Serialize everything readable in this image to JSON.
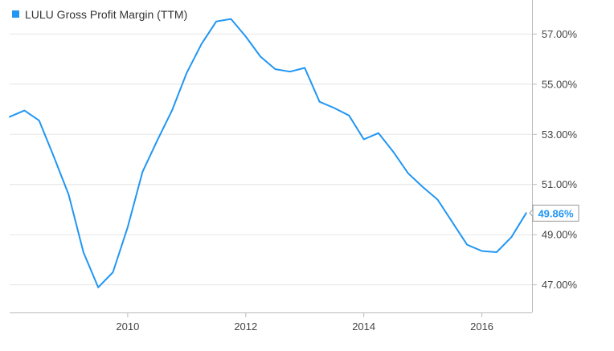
{
  "chart_data": {
    "type": "line",
    "title": "",
    "xlabel": "",
    "ylabel": "",
    "legend": {
      "position": "top-left",
      "items": [
        {
          "label": "LULU Gross Profit Margin (TTM)",
          "color": "#2196F3"
        }
      ]
    },
    "x_ticks": [
      "2010",
      "2012",
      "2014",
      "2016"
    ],
    "y_ticks": [
      "47.00%",
      "49.00%",
      "51.00%",
      "53.00%",
      "55.00%",
      "57.00%"
    ],
    "xlim": [
      2008.0,
      2016.85
    ],
    "ylim": [
      45.9,
      58.1
    ],
    "grid": "horizontal",
    "y_axis_side": "right",
    "series": [
      {
        "name": "LULU Gross Profit Margin (TTM)",
        "color": "#2196F3",
        "x": [
          2008.0,
          2008.25,
          2008.5,
          2008.75,
          2009.0,
          2009.25,
          2009.5,
          2009.75,
          2010.0,
          2010.25,
          2010.5,
          2010.75,
          2011.0,
          2011.25,
          2011.5,
          2011.75,
          2012.0,
          2012.25,
          2012.5,
          2012.75,
          2013.0,
          2013.25,
          2013.5,
          2013.75,
          2014.0,
          2014.25,
          2014.5,
          2014.75,
          2015.0,
          2015.25,
          2015.5,
          2015.75,
          2016.0,
          2016.25,
          2016.5,
          2016.75
        ],
        "values": [
          53.7,
          53.95,
          53.55,
          52.1,
          50.6,
          48.3,
          46.9,
          47.5,
          49.3,
          51.5,
          52.75,
          53.95,
          55.45,
          56.6,
          57.5,
          57.6,
          56.9,
          56.1,
          55.6,
          55.5,
          55.65,
          54.3,
          54.05,
          53.75,
          52.8,
          53.05,
          52.3,
          51.45,
          50.9,
          50.4,
          49.5,
          48.6,
          48.35,
          48.3,
          48.9,
          49.86
        ]
      }
    ],
    "last_value_label": "49.86%"
  }
}
